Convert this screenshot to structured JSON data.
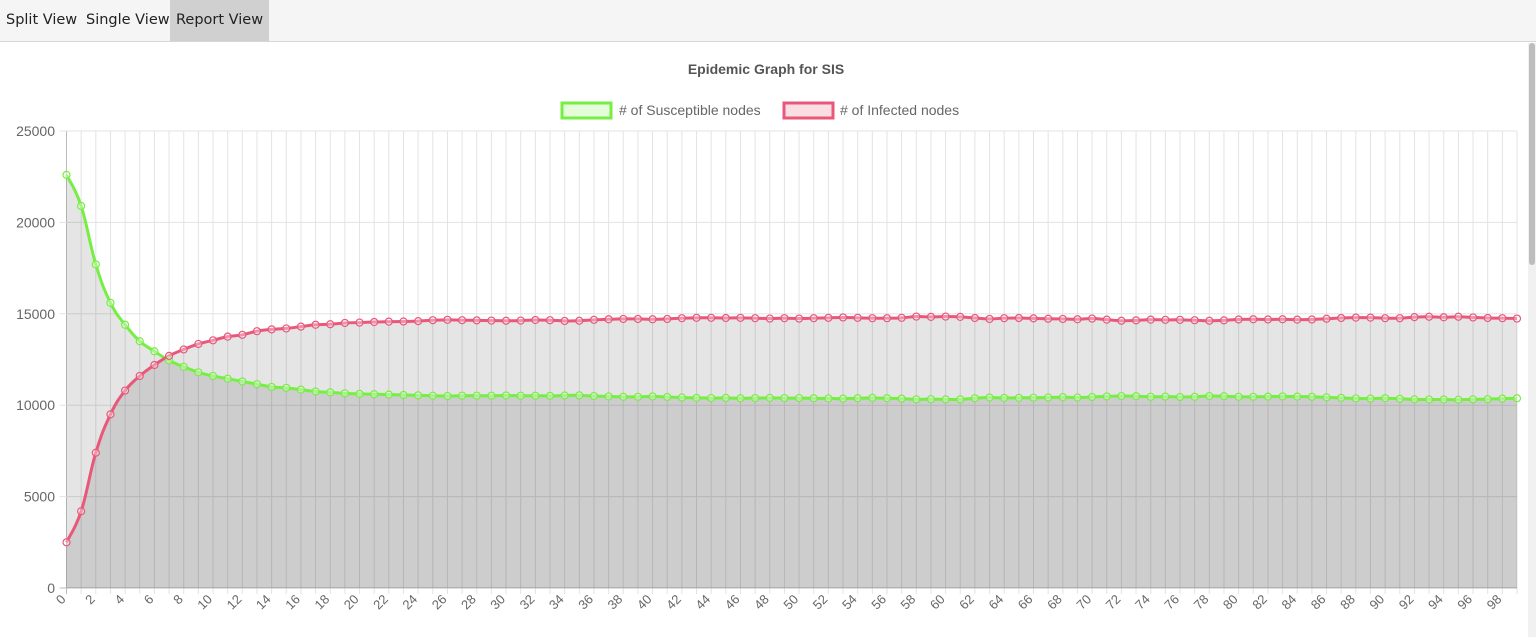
{
  "tabs": [
    {
      "label": "Split View",
      "active": false
    },
    {
      "label": "Single View",
      "active": false
    },
    {
      "label": "Report View",
      "active": true
    }
  ],
  "chart_data": {
    "type": "line",
    "title": "Epidemic Graph for SIS",
    "legend_position": "top",
    "x": [
      0,
      1,
      2,
      3,
      4,
      5,
      6,
      7,
      8,
      9,
      10,
      11,
      12,
      13,
      14,
      15,
      16,
      17,
      18,
      19,
      20,
      21,
      22,
      23,
      24,
      25,
      26,
      27,
      28,
      29,
      30,
      31,
      32,
      33,
      34,
      35,
      36,
      37,
      38,
      39,
      40,
      41,
      42,
      43,
      44,
      45,
      46,
      47,
      48,
      49,
      50,
      51,
      52,
      53,
      54,
      55,
      56,
      57,
      58,
      59,
      60,
      61,
      62,
      63,
      64,
      65,
      66,
      67,
      68,
      69,
      70,
      71,
      72,
      73,
      74,
      75,
      76,
      77,
      78,
      79,
      80,
      81,
      82,
      83,
      84,
      85,
      86,
      87,
      88,
      89,
      90,
      91,
      92,
      93,
      94,
      95,
      96,
      97,
      98,
      99
    ],
    "x_tick_labels": [
      "0",
      "2",
      "4",
      "6",
      "8",
      "10",
      "12",
      "14",
      "16",
      "18",
      "20",
      "22",
      "24",
      "26",
      "28",
      "30",
      "32",
      "34",
      "36",
      "38",
      "40",
      "42",
      "44",
      "46",
      "48",
      "50",
      "52",
      "54",
      "56",
      "58",
      "60",
      "62",
      "64",
      "66",
      "68",
      "70",
      "72",
      "74",
      "76",
      "78",
      "80",
      "82",
      "84",
      "86",
      "88",
      "90",
      "92",
      "94",
      "96",
      "98"
    ],
    "ylim": [
      0,
      25000
    ],
    "y_ticks": [
      0,
      5000,
      10000,
      15000,
      20000,
      25000
    ],
    "grid": true,
    "series": [
      {
        "name": "# of Susceptible nodes",
        "color": "#77ee44",
        "values": [
          22600,
          20900,
          17700,
          15600,
          14400,
          13500,
          12950,
          12450,
          12100,
          11800,
          11600,
          11450,
          11300,
          11150,
          11000,
          10950,
          10850,
          10750,
          10700,
          10650,
          10620,
          10600,
          10580,
          10560,
          10540,
          10520,
          10500,
          10520,
          10520,
          10520,
          10530,
          10520,
          10520,
          10510,
          10530,
          10540,
          10500,
          10480,
          10460,
          10460,
          10480,
          10450,
          10420,
          10400,
          10390,
          10400,
          10380,
          10390,
          10400,
          10390,
          10390,
          10380,
          10370,
          10360,
          10380,
          10400,
          10380,
          10360,
          10320,
          10330,
          10320,
          10320,
          10380,
          10420,
          10400,
          10400,
          10410,
          10420,
          10440,
          10420,
          10450,
          10480,
          10500,
          10490,
          10460,
          10470,
          10450,
          10460,
          10500,
          10490,
          10460,
          10460,
          10470,
          10480,
          10470,
          10460,
          10430,
          10400,
          10370,
          10360,
          10380,
          10350,
          10320,
          10310,
          10310,
          10300,
          10320,
          10330,
          10360,
          10380
        ]
      },
      {
        "name": "# of Infected nodes",
        "color": "#e8587a",
        "values": [
          2500,
          4200,
          7400,
          9500,
          10800,
          11600,
          12200,
          12700,
          13050,
          13350,
          13550,
          13750,
          13850,
          14050,
          14150,
          14200,
          14300,
          14400,
          14430,
          14500,
          14520,
          14550,
          14570,
          14580,
          14600,
          14650,
          14670,
          14650,
          14640,
          14630,
          14620,
          14630,
          14660,
          14650,
          14610,
          14620,
          14670,
          14700,
          14720,
          14720,
          14700,
          14720,
          14760,
          14780,
          14780,
          14770,
          14780,
          14760,
          14740,
          14760,
          14740,
          14760,
          14780,
          14800,
          14780,
          14760,
          14760,
          14780,
          14850,
          14830,
          14850,
          14830,
          14770,
          14720,
          14760,
          14770,
          14750,
          14730,
          14720,
          14700,
          14740,
          14680,
          14620,
          14640,
          14680,
          14670,
          14670,
          14650,
          14620,
          14640,
          14690,
          14700,
          14690,
          14700,
          14680,
          14690,
          14730,
          14770,
          14790,
          14790,
          14760,
          14760,
          14820,
          14840,
          14810,
          14840,
          14800,
          14770,
          14760,
          14740
        ]
      }
    ]
  }
}
